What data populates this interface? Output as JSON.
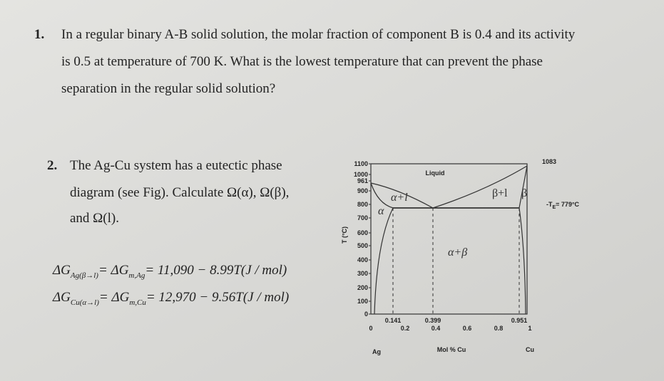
{
  "question1": {
    "number": "1.",
    "lines": [
      "In a regular binary A-B solid solution, the molar fraction of component B is 0.4 and its activity",
      "is 0.5 at temperature of 700 K. What is the lowest temperature that can prevent the phase",
      "separation in the regular solid solution?"
    ]
  },
  "question2": {
    "number": "2.",
    "lines": [
      "The Ag-Cu system has a eutectic phase",
      "diagram (see Fig). Calculate Ω(α), Ω(β),",
      "and Ω(l)."
    ],
    "equations": [
      {
        "parts": [
          "ΔG",
          "Ag(β→l)",
          "= ΔG",
          "m,Ag",
          "= 11,090 − 8.99T(J / mol)"
        ]
      },
      {
        "parts": [
          "ΔG",
          "Cu(α→l)",
          "= ΔG",
          "m,Cu",
          "= 12,970 − 9.56T(J / mol)"
        ]
      }
    ]
  },
  "figure": {
    "y_axis_label": "T (°C)",
    "y_ticks": [
      "1100",
      "1000",
      "961",
      "900",
      "800",
      "700",
      "600",
      "500",
      "400",
      "300",
      "200",
      "100",
      "0"
    ],
    "x_ticks": [
      "0",
      "0.2",
      "0.4",
      "0.6",
      "0.8",
      "1"
    ],
    "x_marks": [
      "0.141",
      "0.399",
      "0.951"
    ],
    "x_axis_label": "Mol % Cu",
    "left_element": "Ag",
    "right_element": "Cu",
    "regions": [
      "Liquid",
      "α+l",
      "α",
      "β+l",
      "β",
      "α+β"
    ],
    "melting_point_label": "1083",
    "eutectic_label": [
      "T",
      "E",
      "= 779°C"
    ]
  }
}
